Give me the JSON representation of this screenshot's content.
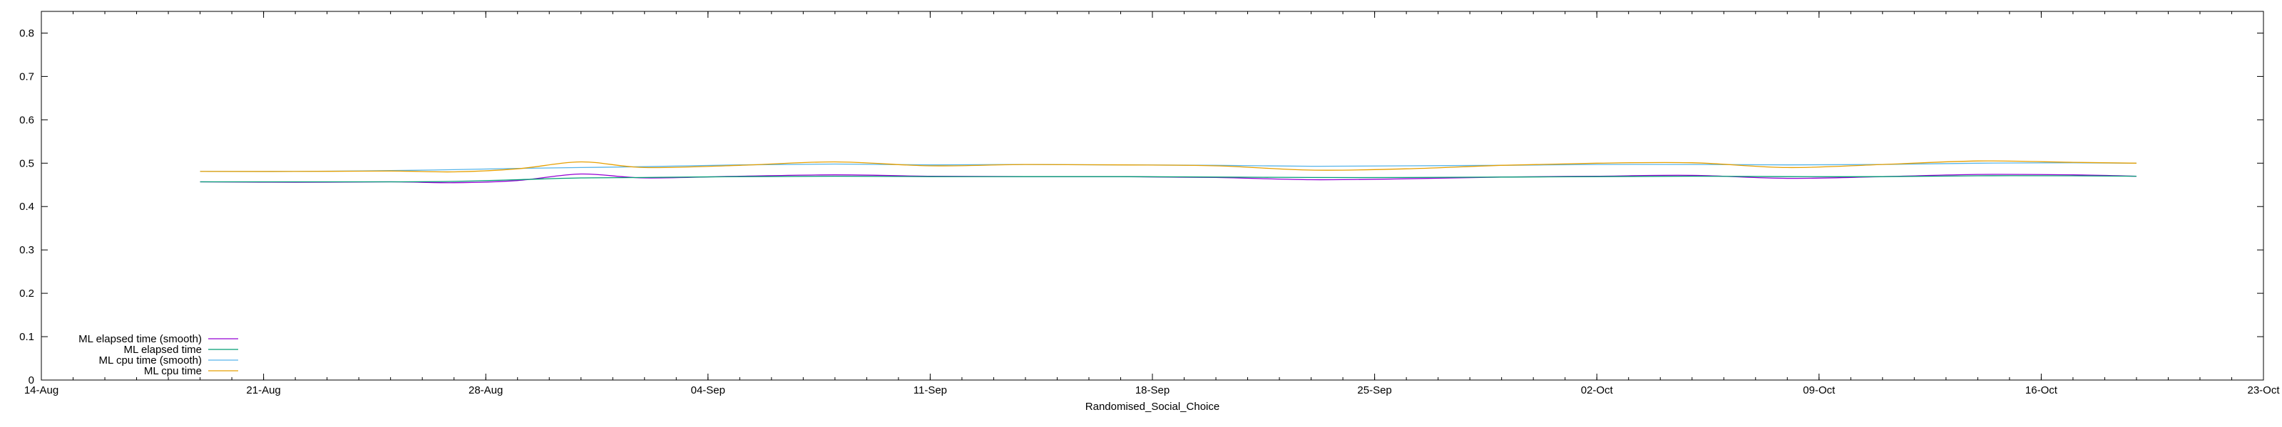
{
  "chart_data": {
    "type": "line",
    "title": "",
    "xlabel": "Randomised_Social_Choice",
    "ylabel": "",
    "x_type": "date",
    "xlim": [
      "2023-08-14",
      "2023-10-23"
    ],
    "ylim": [
      0,
      0.85
    ],
    "x_ticks": [
      "14-Aug",
      "21-Aug",
      "28-Aug",
      "04-Sep",
      "11-Sep",
      "18-Sep",
      "25-Sep",
      "02-Oct",
      "09-Oct",
      "16-Oct",
      "23-Oct"
    ],
    "x_tick_dates": [
      "2023-08-14",
      "2023-08-21",
      "2023-08-28",
      "2023-09-04",
      "2023-09-11",
      "2023-09-18",
      "2023-09-25",
      "2023-10-02",
      "2023-10-09",
      "2023-10-16",
      "2023-10-23"
    ],
    "y_ticks": [
      "0",
      "0.1",
      "0.2",
      "0.3",
      "0.4",
      "0.5",
      "0.6",
      "0.7",
      "0.8"
    ],
    "y_tick_values": [
      0,
      0.1,
      0.2,
      0.3,
      0.4,
      0.5,
      0.6,
      0.7,
      0.8
    ],
    "grid": false,
    "legend_position": "bottom-left",
    "x": [
      "2023-08-19",
      "2023-08-22",
      "2023-08-25",
      "2023-08-27",
      "2023-08-29",
      "2023-08-31",
      "2023-09-02",
      "2023-09-05",
      "2023-09-08",
      "2023-09-11",
      "2023-09-14",
      "2023-09-17",
      "2023-09-20",
      "2023-09-23",
      "2023-09-26",
      "2023-09-29",
      "2023-10-02",
      "2023-10-05",
      "2023-10-08",
      "2023-10-11",
      "2023-10-14",
      "2023-10-17",
      "2023-10-19"
    ],
    "series": [
      {
        "name": "ML elapsed time (smooth)",
        "color": "#9400d3",
        "values": [
          0.457,
          0.456,
          0.457,
          0.455,
          0.46,
          0.475,
          0.466,
          0.47,
          0.473,
          0.47,
          0.469,
          0.469,
          0.467,
          0.462,
          0.464,
          0.468,
          0.47,
          0.472,
          0.465,
          0.469,
          0.474,
          0.473,
          0.47
        ]
      },
      {
        "name": "ML elapsed time",
        "color": "#009e73",
        "values": [
          0.457,
          0.457,
          0.457,
          0.458,
          0.462,
          0.466,
          0.467,
          0.469,
          0.47,
          0.469,
          0.469,
          0.469,
          0.468,
          0.467,
          0.467,
          0.468,
          0.469,
          0.47,
          0.469,
          0.469,
          0.471,
          0.471,
          0.47
        ]
      },
      {
        "name": "ML cpu time (smooth)",
        "color": "#56b4e9",
        "values": [
          0.481,
          0.481,
          0.483,
          0.485,
          0.488,
          0.49,
          0.492,
          0.496,
          0.498,
          0.496,
          0.497,
          0.496,
          0.495,
          0.493,
          0.494,
          0.495,
          0.497,
          0.497,
          0.496,
          0.497,
          0.5,
          0.501,
          0.5
        ]
      },
      {
        "name": "ML cpu time",
        "color": "#e69f00",
        "values": [
          0.481,
          0.481,
          0.482,
          0.48,
          0.487,
          0.503,
          0.49,
          0.495,
          0.503,
          0.494,
          0.497,
          0.496,
          0.494,
          0.484,
          0.487,
          0.495,
          0.5,
          0.501,
          0.49,
          0.497,
          0.505,
          0.502,
          0.5
        ]
      }
    ]
  }
}
